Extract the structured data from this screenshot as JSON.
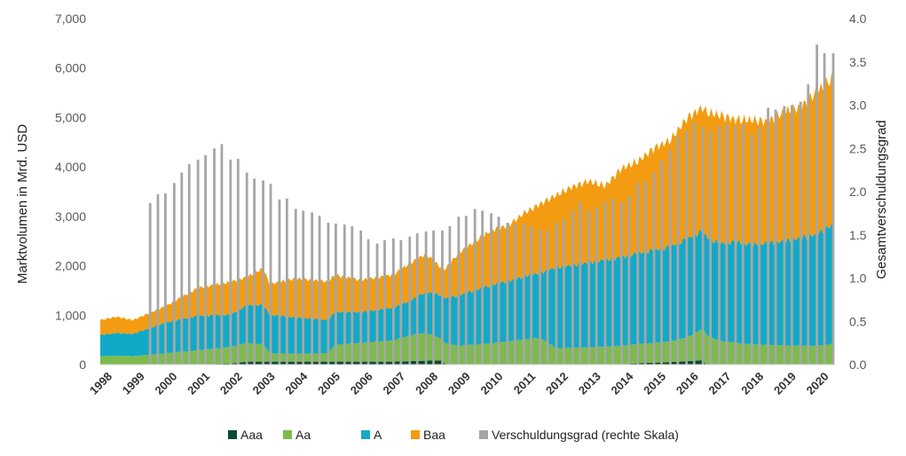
{
  "chart_data": {
    "type": "area",
    "title": "",
    "ylabel": "Marktvolumen in Mrd. USD",
    "y2label": "Gesamtverschuldungsgrad",
    "ylim": [
      0,
      7000
    ],
    "y2lim": [
      0,
      4.0
    ],
    "yticks": [
      "0",
      "1,000",
      "2,000",
      "3,000",
      "4,000",
      "5,000",
      "6,000",
      "7,000"
    ],
    "y2ticks": [
      "0.0",
      "0.5",
      "1.0",
      "1.5",
      "2.0",
      "2.5",
      "3.0",
      "3.5",
      "4.0"
    ],
    "xlim": [
      1998.0,
      2020.5
    ],
    "x_tick_labels": [
      "1998",
      "1999",
      "2000",
      "2001",
      "2002",
      "2003",
      "2004",
      "2005",
      "2006",
      "2007",
      "2008",
      "2009",
      "2010",
      "2011",
      "2012",
      "2013",
      "2014",
      "2015",
      "2016",
      "2017",
      "2018",
      "2019",
      "2020"
    ],
    "legend_position": "bottom",
    "series": [
      {
        "name": "Aaa",
        "color": "#0b4a32",
        "x": [
          1998.0,
          2000.0,
          2001.0,
          2002.0,
          2002.5,
          2003.0,
          2004.0,
          2005.0,
          2006.0,
          2007.0,
          2007.5,
          2008.0,
          2008.5,
          2008.6,
          2010.9,
          2011.0,
          2011.2,
          2014.0,
          2014.5,
          2015.0,
          2015.5,
          2016.0,
          2016.5,
          2016.6,
          2020.5
        ],
        "values": [
          0,
          0,
          10,
          20,
          60,
          60,
          60,
          60,
          60,
          60,
          70,
          80,
          80,
          0,
          0,
          20,
          0,
          0,
          30,
          40,
          50,
          70,
          90,
          0,
          0
        ]
      },
      {
        "name": "Aa",
        "color": "#7dbb4d",
        "x": [
          1998.0,
          1998.5,
          1999.0,
          2000.0,
          2001.0,
          2002.0,
          2002.5,
          2003.0,
          2003.2,
          2004.0,
          2005.0,
          2005.2,
          2006.0,
          2007.0,
          2007.5,
          2008.0,
          2008.5,
          2009.0,
          2010.0,
          2010.5,
          2011.0,
          2011.5,
          2012.0,
          2013.0,
          2014.0,
          2015.0,
          2015.5,
          2016.0,
          2016.5,
          2017.0,
          2018.0,
          2019.0,
          2020.0,
          2020.5
        ],
        "values": [
          170,
          180,
          170,
          230,
          280,
          340,
          380,
          350,
          170,
          160,
          170,
          340,
          380,
          430,
          520,
          560,
          440,
          380,
          430,
          470,
          500,
          540,
          330,
          350,
          380,
          400,
          420,
          480,
          640,
          480,
          410,
          390,
          380,
          420
        ]
      },
      {
        "name": "A",
        "color": "#12a9c8",
        "x": [
          1998.0,
          1998.5,
          1999.0,
          2000.0,
          2001.0,
          2002.0,
          2002.5,
          2003.0,
          2003.2,
          2004.0,
          2005.0,
          2006.0,
          2007.0,
          2007.5,
          2008.0,
          2008.5,
          2009.0,
          2010.0,
          2010.5,
          2011.0,
          2011.5,
          2012.0,
          2013.0,
          2014.0,
          2015.0,
          2015.5,
          2016.0,
          2016.5,
          2017.0,
          2017.5,
          2018.0,
          2019.0,
          2020.0,
          2020.5
        ],
        "values": [
          430,
          460,
          450,
          620,
          700,
          650,
          760,
          800,
          780,
          730,
          670,
          620,
          660,
          700,
          830,
          880,
          1020,
          1180,
          1220,
          1280,
          1320,
          1640,
          1720,
          1800,
          1880,
          1920,
          1990,
          1980,
          1960,
          2040,
          2010,
          2100,
          2250,
          2420
        ]
      },
      {
        "name": "Baa",
        "color": "#f39c12",
        "x": [
          1998.0,
          1998.5,
          1999.0,
          2000.0,
          2001.0,
          2002.0,
          2002.5,
          2003.0,
          2003.2,
          2004.0,
          2005.0,
          2006.0,
          2007.0,
          2007.5,
          2008.0,
          2008.5,
          2009.0,
          2010.0,
          2010.5,
          2011.0,
          2011.5,
          2012.0,
          2012.5,
          2013.0,
          2013.5,
          2014.0,
          2014.5,
          2015.0,
          2015.5,
          2016.0,
          2016.5,
          2017.0,
          2017.5,
          2018.0,
          2018.5,
          2019.0,
          2019.5,
          2020.0,
          2020.5
        ],
        "values": [
          300,
          330,
          280,
          330,
          560,
          660,
          570,
          740,
          620,
          790,
          780,
          650,
          670,
          760,
          770,
          540,
          860,
          1110,
          1120,
          1270,
          1390,
          1460,
          1580,
          1640,
          1490,
          1790,
          1850,
          2060,
          2150,
          2440,
          2500,
          2610,
          2470,
          2530,
          2460,
          2630,
          2650,
          2900,
          2970
        ]
      },
      {
        "name": "Verschuldungsgrad (rechte Skala)",
        "color": "#a6a6a6",
        "x": [
          1999.53,
          1999.77,
          2000.0,
          2000.27,
          2000.5,
          2000.73,
          2001.0,
          2001.23,
          2001.5,
          2001.73,
          2002.0,
          2002.23,
          2002.5,
          2002.73,
          2003.0,
          2003.23,
          2003.5,
          2003.73,
          2004.0,
          2004.23,
          2004.5,
          2004.73,
          2005.0,
          2005.23,
          2005.5,
          2005.73,
          2006.0,
          2006.23,
          2006.5,
          2006.73,
          2007.0,
          2007.23,
          2007.5,
          2007.73,
          2008.0,
          2008.23,
          2008.5,
          2008.73,
          2009.0,
          2009.23,
          2009.5,
          2009.73,
          2010.0,
          2010.23,
          2010.5,
          2010.73,
          2011.0,
          2011.23,
          2011.5,
          2011.73,
          2012.0,
          2012.23,
          2012.5,
          2012.73,
          2013.0,
          2013.23,
          2013.5,
          2013.73,
          2014.0,
          2014.23,
          2014.5,
          2014.73,
          2015.0,
          2015.23,
          2015.5,
          2015.73,
          2016.0,
          2016.23,
          2016.5,
          2016.73,
          2017.0,
          2017.23,
          2017.5,
          2017.73,
          2018.0,
          2018.23,
          2018.5,
          2018.73,
          2019.0,
          2019.23,
          2019.5,
          2019.73,
          2020.0,
          2020.23,
          2020.5
        ],
        "values": [
          1.87,
          1.97,
          1.98,
          2.1,
          2.22,
          2.32,
          2.37,
          2.42,
          2.5,
          2.55,
          2.37,
          2.38,
          2.22,
          2.15,
          2.13,
          2.09,
          1.91,
          1.92,
          1.8,
          1.78,
          1.76,
          1.72,
          1.64,
          1.63,
          1.62,
          1.6,
          1.55,
          1.45,
          1.4,
          1.44,
          1.46,
          1.44,
          1.48,
          1.52,
          1.54,
          1.55,
          1.55,
          1.6,
          1.71,
          1.72,
          1.8,
          1.78,
          1.75,
          1.71,
          1.64,
          1.62,
          1.63,
          1.6,
          1.56,
          1.55,
          1.64,
          1.68,
          1.78,
          1.88,
          1.78,
          1.82,
          1.88,
          1.92,
          1.88,
          1.95,
          2.1,
          2.12,
          2.22,
          2.36,
          2.48,
          2.64,
          2.7,
          2.8,
          2.75,
          2.7,
          2.76,
          2.78,
          2.76,
          2.78,
          2.66,
          2.75,
          2.97,
          2.95,
          2.99,
          3.0,
          3.04,
          3.24,
          3.7,
          3.6,
          3.6
        ]
      }
    ]
  }
}
